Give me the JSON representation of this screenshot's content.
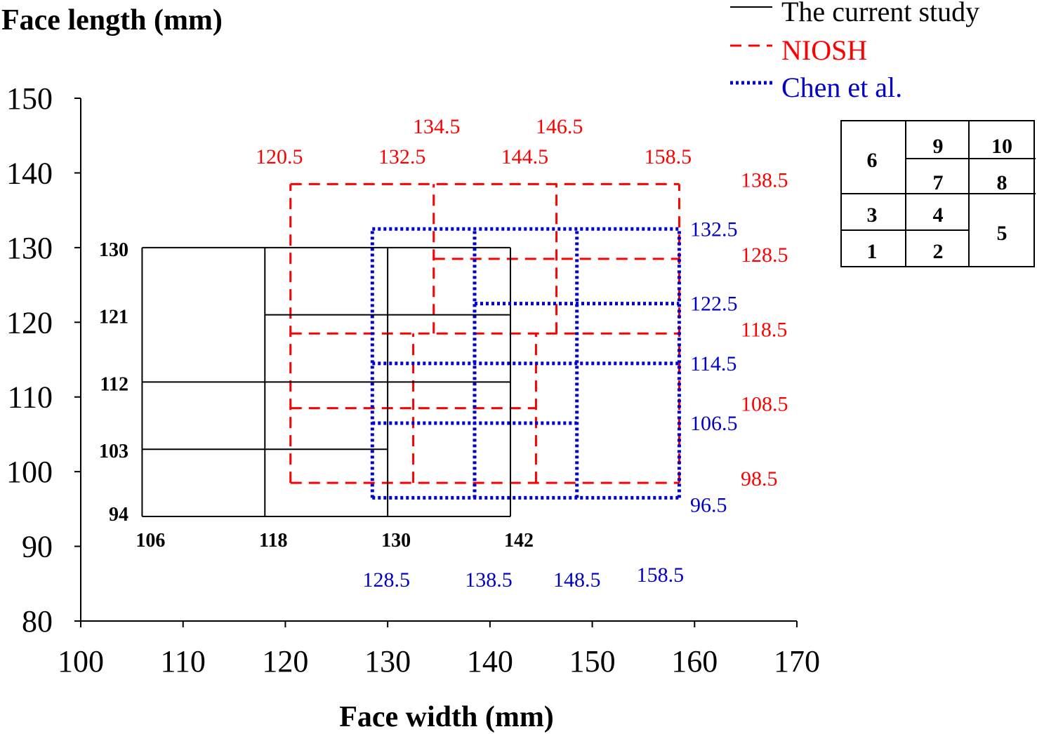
{
  "chart_data": {
    "type": "line",
    "title": "",
    "xlabel": "Face width (mm)",
    "ylabel": "Face length (mm)",
    "xlim": [
      100,
      170
    ],
    "ylim": [
      80,
      150
    ],
    "x_ticks": [
      100,
      110,
      120,
      130,
      140,
      150,
      160,
      170
    ],
    "y_ticks": [
      80,
      90,
      100,
      110,
      120,
      130,
      140,
      150
    ],
    "grid": false,
    "legend_position": "top-right",
    "colors": {
      "current": "#000000",
      "niosh": "#ff0000",
      "chen": "#0000cc"
    },
    "series": [
      {
        "name": "The current study",
        "style": "solid",
        "color": "#000000",
        "segments": [
          [
            [
              106,
              94
            ],
            [
              142,
              94
            ]
          ],
          [
            [
              106,
              103
            ],
            [
              130,
              103
            ]
          ],
          [
            [
              106,
              112
            ],
            [
              142,
              112
            ]
          ],
          [
            [
              118,
              121
            ],
            [
              142,
              121
            ]
          ],
          [
            [
              106,
              130
            ],
            [
              142,
              130
            ]
          ],
          [
            [
              106,
              94
            ],
            [
              106,
              130
            ]
          ],
          [
            [
              118,
              94
            ],
            [
              118,
              130
            ]
          ],
          [
            [
              130,
              94
            ],
            [
              130,
              130
            ]
          ],
          [
            [
              142,
              94
            ],
            [
              142,
              130
            ]
          ]
        ],
        "x_labels": [
          "106",
          "118",
          "130",
          "142"
        ],
        "y_labels": [
          "94",
          "103",
          "112",
          "121",
          "130"
        ]
      },
      {
        "name": "NIOSH",
        "style": "dashed",
        "color": "#ff0000",
        "segments": [
          [
            [
              120.5,
              98.5
            ],
            [
              158.5,
              98.5
            ]
          ],
          [
            [
              120.5,
              108.5
            ],
            [
              144.5,
              108.5
            ]
          ],
          [
            [
              120.5,
              118.5
            ],
            [
              158.5,
              118.5
            ]
          ],
          [
            [
              134.5,
              128.5
            ],
            [
              158.5,
              128.5
            ]
          ],
          [
            [
              120.5,
              138.5
            ],
            [
              158.5,
              138.5
            ]
          ],
          [
            [
              120.5,
              98.5
            ],
            [
              120.5,
              138.5
            ]
          ],
          [
            [
              132.5,
              98.5
            ],
            [
              132.5,
              118.5
            ]
          ],
          [
            [
              144.5,
              98.5
            ],
            [
              144.5,
              118.5
            ]
          ],
          [
            [
              134.5,
              118.5
            ],
            [
              134.5,
              138.5
            ]
          ],
          [
            [
              146.5,
              118.5
            ],
            [
              146.5,
              138.5
            ]
          ],
          [
            [
              158.5,
              98.5
            ],
            [
              158.5,
              138.5
            ]
          ]
        ],
        "x_labels_low": [
          "120.5",
          "132.5",
          "144.5",
          "158.5"
        ],
        "x_labels_high": [
          "134.5",
          "146.5"
        ],
        "y_labels": [
          "98.5",
          "108.5",
          "118.5",
          "128.5",
          "138.5"
        ]
      },
      {
        "name": "Chen et al.",
        "style": "dotted",
        "color": "#0000cc",
        "segments": [
          [
            [
              128.5,
              96.5
            ],
            [
              158.5,
              96.5
            ]
          ],
          [
            [
              128.5,
              106.5
            ],
            [
              148.5,
              106.5
            ]
          ],
          [
            [
              128.5,
              114.5
            ],
            [
              158.5,
              114.5
            ]
          ],
          [
            [
              138.5,
              122.5
            ],
            [
              158.5,
              122.5
            ]
          ],
          [
            [
              128.5,
              132.5
            ],
            [
              158.5,
              132.5
            ]
          ],
          [
            [
              128.5,
              96.5
            ],
            [
              128.5,
              132.5
            ]
          ],
          [
            [
              138.5,
              96.5
            ],
            [
              138.5,
              132.5
            ]
          ],
          [
            [
              148.5,
              96.5
            ],
            [
              148.5,
              132.5
            ]
          ],
          [
            [
              158.5,
              96.5
            ],
            [
              158.5,
              132.5
            ]
          ]
        ],
        "x_labels": [
          "128.5",
          "138.5",
          "148.5",
          "158.5"
        ],
        "y_labels": [
          "96.5",
          "106.5",
          "114.5",
          "122.5",
          "132.5"
        ]
      }
    ],
    "cell_key": {
      "rows": [
        [
          "6",
          "9",
          "10"
        ],
        [
          "6",
          "7",
          "8"
        ],
        [
          "3",
          "4",
          "5"
        ],
        [
          "1",
          "2",
          "5"
        ]
      ]
    }
  }
}
